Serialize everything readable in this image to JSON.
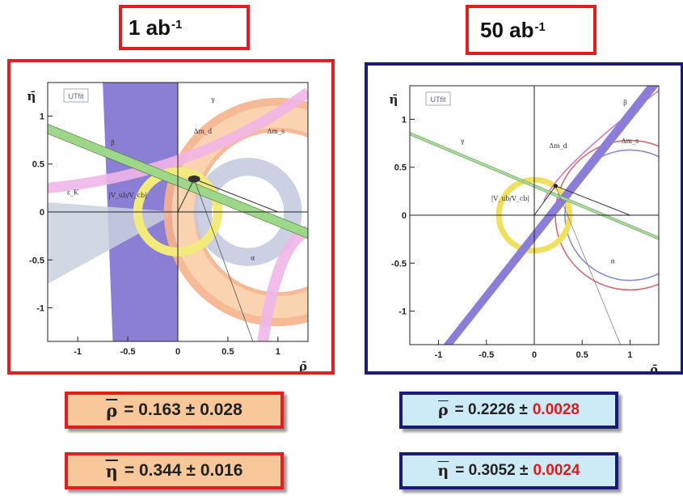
{
  "labels": {
    "left_lumi_value": "1 ab",
    "left_lumi_exp": "-1",
    "right_lumi_value": "50 ab",
    "right_lumi_exp": "-1"
  },
  "results": {
    "left": {
      "rho": {
        "symbol": "ρ",
        "text": "= 0.163 ±",
        "error": "0.028"
      },
      "eta": {
        "symbol": "η",
        "text": "= 0.344 ±",
        "error": "0.016"
      }
    },
    "right": {
      "rho": {
        "symbol": "ρ",
        "text": "= 0.2226 ±",
        "error": "0.0028"
      },
      "eta": {
        "symbol": "η",
        "text": "= 0.3052 ±",
        "error": "0.0024"
      }
    }
  },
  "colors": {
    "red_frame": "#e02020",
    "navy_frame": "#1a1a7a",
    "result_left_bg": "#f8c79a",
    "result_right_bg": "#ccebf7",
    "error_red": "#e01a1a"
  },
  "chart_data": [
    {
      "type": "scatter",
      "title": "",
      "legend_label": "UTfit",
      "xlabel": "ρ̄",
      "ylabel": "η̄",
      "xlim": [
        -1.3,
        1.3
      ],
      "ylim": [
        -1.35,
        1.35
      ],
      "x_ticks": [
        "-1",
        "-0.5",
        "0",
        "0.5",
        "1"
      ],
      "y_ticks": [
        "1",
        "0.5",
        "0",
        "-0.5",
        "-1"
      ],
      "region_labels": [
        "γ",
        "β",
        "ε_K",
        "Δm_d",
        "Δm_s",
        "|V_ub/V_cb|",
        "α"
      ],
      "constraints": {
        "rho_bar_center": 0.163,
        "eta_bar_center": 0.344,
        "dmd_radius": 0.9,
        "dms_radius": 0.8,
        "vub_radius": 0.4,
        "beta_slope": -0.42
      }
    },
    {
      "type": "scatter",
      "title": "",
      "legend_label": "UTfit",
      "xlabel": "ρ̄",
      "ylabel": "η̄",
      "xlim": [
        -1.3,
        1.3
      ],
      "ylim": [
        -1.35,
        1.35
      ],
      "x_ticks": [
        "-1",
        "-0.5",
        "0",
        "0.5",
        "1"
      ],
      "y_ticks": [
        "1",
        "0.5",
        "0",
        "-0.5",
        "-1"
      ],
      "region_labels": [
        "β",
        "Δm_d",
        "Δm_s",
        "|V_ub/V_cb|",
        "γ",
        "α"
      ],
      "constraints": {
        "rho_bar_center": 0.2226,
        "eta_bar_center": 0.3052,
        "dmd_radius": 0.78,
        "dms_radius": 0.68,
        "vub_radius": 0.37,
        "beta_slope": -0.42
      }
    }
  ]
}
